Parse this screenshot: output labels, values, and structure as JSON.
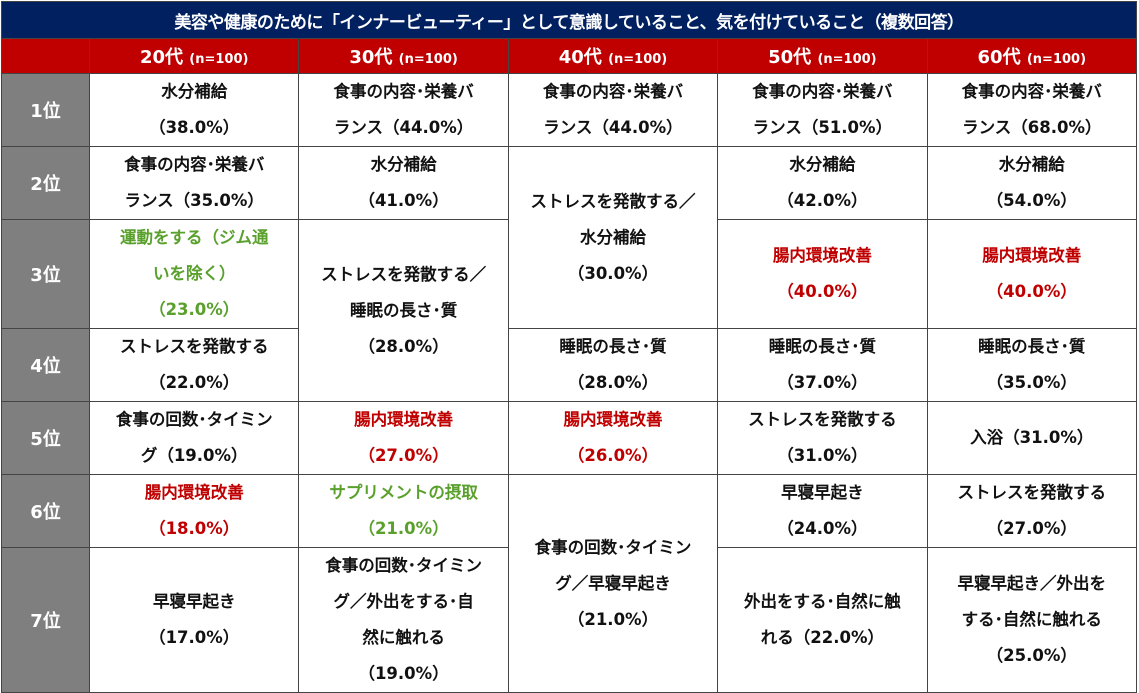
{
  "title": "美容や健康のために「インナービューティー」として意識していること、気を付けていること（複数回答）",
  "columns": [
    {
      "age": "20代",
      "n": "(n=100)"
    },
    {
      "age": "30代",
      "n": "(n=100)"
    },
    {
      "age": "40代",
      "n": "(n=100)"
    },
    {
      "age": "50代",
      "n": "(n=100)"
    },
    {
      "age": "60代",
      "n": "(n=100)"
    }
  ],
  "ranks": [
    "1位",
    "2位",
    "3位",
    "4位",
    "5位",
    "6位",
    "7位"
  ],
  "colors": {
    "red": "#c00000",
    "green": "#5aa02c",
    "header_bg": "#002060",
    "col_bg": "#c00000",
    "rank_bg": "#7f7f7f"
  },
  "cells": [
    [
      {
        "text": "水分補給\n（38.0%）",
        "rank": 1,
        "span": 1
      },
      {
        "text": "食事の内容･栄養バ\nランス（35.0%）",
        "rank": 2,
        "span": 1
      },
      {
        "text": "運動をする（ジム通\nいを除く）\n（23.0%）",
        "rank": 3,
        "span": 1,
        "color": "green"
      },
      {
        "text": "ストレスを発散する\n（22.0%）",
        "rank": 4,
        "span": 1
      },
      {
        "text": "食事の回数･タイミン\nグ（19.0%）",
        "rank": 5,
        "span": 1
      },
      {
        "text": "腸内環境改善\n（18.0%）",
        "rank": 6,
        "span": 1,
        "color": "red"
      },
      {
        "text": "早寝早起き\n（17.0%）",
        "rank": 7,
        "span": 1
      }
    ],
    [
      {
        "text": "食事の内容･栄養バ\nランス（44.0%）",
        "rank": 1,
        "span": 1
      },
      {
        "text": "水分補給\n（41.0%）",
        "rank": 2,
        "span": 1
      },
      {
        "text": "ストレスを発散する／\n睡眠の長さ･質\n（28.0%）",
        "rank": 3,
        "span": 2
      },
      {
        "text": "腸内環境改善\n（27.0%）",
        "rank": 5,
        "span": 1,
        "color": "red"
      },
      {
        "text": "サプリメントの摂取\n（21.0%）",
        "rank": 6,
        "span": 1,
        "color": "green"
      },
      {
        "text": "食事の回数･タイミン\nグ／外出をする･自\n然に触れる\n（19.0%）",
        "rank": 7,
        "span": 1
      }
    ],
    [
      {
        "text": "食事の内容･栄養バ\nランス（44.0%）",
        "rank": 1,
        "span": 1
      },
      {
        "text": "ストレスを発散する／\n水分補給\n（30.0%）",
        "rank": 2,
        "span": 2
      },
      {
        "text": "睡眠の長さ･質\n（28.0%）",
        "rank": 4,
        "span": 1
      },
      {
        "text": "腸内環境改善\n（26.0%）",
        "rank": 5,
        "span": 1,
        "color": "red"
      },
      {
        "text": "食事の回数･タイミン\nグ／早寝早起き\n（21.0%）",
        "rank": 6,
        "span": 2
      }
    ],
    [
      {
        "text": "食事の内容･栄養バ\nランス（51.0%）",
        "rank": 1,
        "span": 1
      },
      {
        "text": "水分補給\n（42.0%）",
        "rank": 2,
        "span": 1
      },
      {
        "text": "腸内環境改善\n（40.0%）",
        "rank": 3,
        "span": 1,
        "color": "red"
      },
      {
        "text": "睡眠の長さ･質\n（37.0%）",
        "rank": 4,
        "span": 1
      },
      {
        "text": "ストレスを発散する\n（31.0%）",
        "rank": 5,
        "span": 1
      },
      {
        "text": "早寝早起き\n（24.0%）",
        "rank": 6,
        "span": 1
      },
      {
        "text": "外出をする･自然に触\nれる（22.0%）",
        "rank": 7,
        "span": 1
      }
    ],
    [
      {
        "text": "食事の内容･栄養バ\nランス（68.0%）",
        "rank": 1,
        "span": 1
      },
      {
        "text": "水分補給\n（54.0%）",
        "rank": 2,
        "span": 1
      },
      {
        "text": "腸内環境改善\n（40.0%）",
        "rank": 3,
        "span": 1,
        "color": "red"
      },
      {
        "text": "睡眠の長さ･質\n（35.0%）",
        "rank": 4,
        "span": 1
      },
      {
        "text": "入浴（31.0%）",
        "rank": 5,
        "span": 1
      },
      {
        "text": "ストレスを発散する\n（27.0%）",
        "rank": 6,
        "span": 1
      },
      {
        "text": "早寝早起き／外出を\nする･自然に触れる\n（25.0%）",
        "rank": 7,
        "span": 1
      }
    ]
  ]
}
